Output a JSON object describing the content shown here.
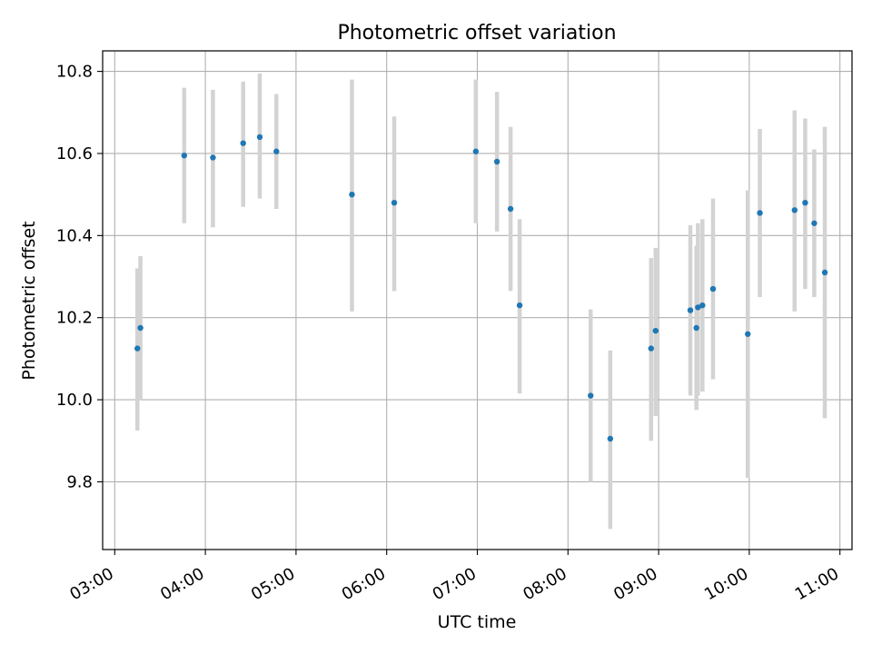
{
  "chart_data": {
    "type": "scatter",
    "title": "Photometric offset variation",
    "xlabel": "UTC time",
    "ylabel": "Photometric offset",
    "x_tick_labels": [
      "03:00",
      "04:00",
      "05:00",
      "06:00",
      "07:00",
      "08:00",
      "09:00",
      "10:00",
      "11:00"
    ],
    "y_tick_labels": [
      "9.8",
      "10.0",
      "10.2",
      "10.4",
      "10.6",
      "10.8"
    ],
    "xlim": [
      "02:52",
      "11:08"
    ],
    "ylim": [
      9.635,
      10.85
    ],
    "grid": true,
    "colors": {
      "points": "#1f77b4",
      "error_bars": "#d3d3d3",
      "grid": "#b0b0b0"
    },
    "points": [
      {
        "x": "03:15",
        "y": 10.125,
        "err_low": 9.925,
        "err_high": 10.32
      },
      {
        "x": "03:17",
        "y": 10.175,
        "err_low": 10.0,
        "err_high": 10.35
      },
      {
        "x": "03:46",
        "y": 10.595,
        "err_low": 10.43,
        "err_high": 10.76
      },
      {
        "x": "04:05",
        "y": 10.59,
        "err_low": 10.42,
        "err_high": 10.755
      },
      {
        "x": "04:25",
        "y": 10.625,
        "err_low": 10.47,
        "err_high": 10.775
      },
      {
        "x": "04:36",
        "y": 10.64,
        "err_low": 10.49,
        "err_high": 10.795
      },
      {
        "x": "04:47",
        "y": 10.605,
        "err_low": 10.465,
        "err_high": 10.745
      },
      {
        "x": "05:37",
        "y": 10.5,
        "err_low": 10.215,
        "err_high": 10.78
      },
      {
        "x": "06:05",
        "y": 10.48,
        "err_low": 10.265,
        "err_high": 10.69
      },
      {
        "x": "06:59",
        "y": 10.605,
        "err_low": 10.43,
        "err_high": 10.78
      },
      {
        "x": "07:13",
        "y": 10.58,
        "err_low": 10.41,
        "err_high": 10.75
      },
      {
        "x": "07:22",
        "y": 10.465,
        "err_low": 10.265,
        "err_high": 10.665
      },
      {
        "x": "07:28",
        "y": 10.23,
        "err_low": 10.015,
        "err_high": 10.44
      },
      {
        "x": "08:15",
        "y": 10.01,
        "err_low": 9.8,
        "err_high": 10.22
      },
      {
        "x": "08:28",
        "y": 9.905,
        "err_low": 9.685,
        "err_high": 10.12
      },
      {
        "x": "08:55",
        "y": 10.125,
        "err_low": 9.9,
        "err_high": 10.345
      },
      {
        "x": "08:58",
        "y": 10.168,
        "err_low": 9.96,
        "err_high": 10.37
      },
      {
        "x": "09:21",
        "y": 10.218,
        "err_low": 10.01,
        "err_high": 10.425
      },
      {
        "x": "09:25",
        "y": 10.175,
        "err_low": 9.975,
        "err_high": 10.375
      },
      {
        "x": "09:26",
        "y": 10.225,
        "err_low": 10.01,
        "err_high": 10.43
      },
      {
        "x": "09:29",
        "y": 10.23,
        "err_low": 10.02,
        "err_high": 10.44
      },
      {
        "x": "09:36",
        "y": 10.27,
        "err_low": 10.05,
        "err_high": 10.49
      },
      {
        "x": "09:59",
        "y": 10.16,
        "err_low": 9.81,
        "err_high": 10.51
      },
      {
        "x": "10:07",
        "y": 10.455,
        "err_low": 10.25,
        "err_high": 10.66
      },
      {
        "x": "10:30",
        "y": 10.462,
        "err_low": 10.215,
        "err_high": 10.705
      },
      {
        "x": "10:37",
        "y": 10.48,
        "err_low": 10.27,
        "err_high": 10.685
      },
      {
        "x": "10:43",
        "y": 10.43,
        "err_low": 10.25,
        "err_high": 10.61
      },
      {
        "x": "10:50",
        "y": 10.31,
        "err_low": 9.955,
        "err_high": 10.665
      }
    ]
  }
}
